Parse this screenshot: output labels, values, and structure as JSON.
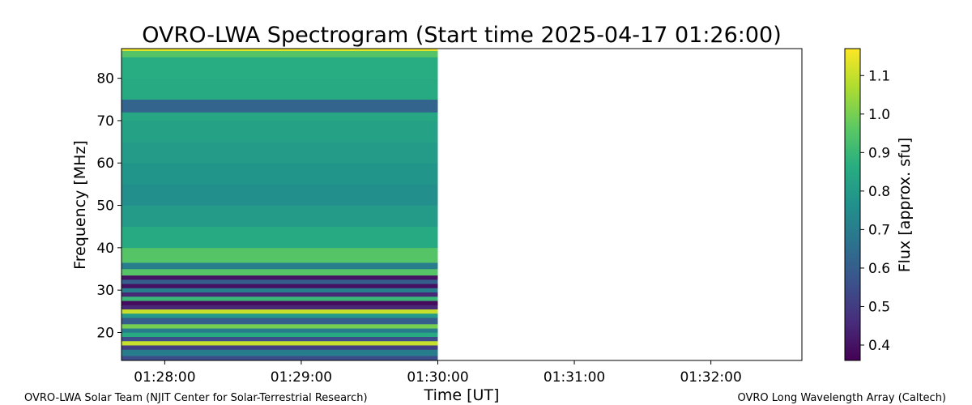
{
  "chart_data": {
    "type": "heatmap",
    "title": "OVRO-LWA Spectrogram (Start time 2025-04-17 01:26:00)",
    "xlabel": "Time [UT]",
    "ylabel": "Frequency [MHz]",
    "xlim": [
      "01:27:41",
      "01:32:40"
    ],
    "ylim": [
      13.4,
      87.0
    ],
    "xticks": [
      {
        "t": "01:28:00",
        "label": "01:28:00"
      },
      {
        "t": "01:29:00",
        "label": "01:29:00"
      },
      {
        "t": "01:30:00",
        "label": "01:30:00"
      },
      {
        "t": "01:31:00",
        "label": "01:31:00"
      },
      {
        "t": "01:32:00",
        "label": "01:32:00"
      }
    ],
    "yticks": [
      20,
      30,
      40,
      50,
      60,
      70,
      80
    ],
    "data_time_range": [
      "01:27:41",
      "01:30:00"
    ],
    "colorbar": {
      "label": "Flux [approx. sfu]",
      "range": [
        0.36,
        1.17
      ],
      "ticks": [
        0.4,
        0.5,
        0.6,
        0.7,
        0.8,
        0.9,
        1.0,
        1.1
      ],
      "colormap": "viridis"
    },
    "band_profile": [
      {
        "f": 13.4,
        "v": 0.55
      },
      {
        "f": 14.5,
        "v": 0.7
      },
      {
        "f": 16,
        "v": 0.5
      },
      {
        "f": 17,
        "v": 1.1
      },
      {
        "f": 18,
        "v": 0.55
      },
      {
        "f": 19,
        "v": 0.85
      },
      {
        "f": 20,
        "v": 0.7
      },
      {
        "f": 21,
        "v": 1.0
      },
      {
        "f": 22,
        "v": 0.6
      },
      {
        "f": 23.5,
        "v": 0.8
      },
      {
        "f": 24.5,
        "v": 1.1
      },
      {
        "f": 25.5,
        "v": 0.45
      },
      {
        "f": 26.5,
        "v": 0.38
      },
      {
        "f": 27.5,
        "v": 0.9
      },
      {
        "f": 28.5,
        "v": 0.45
      },
      {
        "f": 29.5,
        "v": 0.7
      },
      {
        "f": 30.5,
        "v": 0.4
      },
      {
        "f": 31.5,
        "v": 0.6
      },
      {
        "f": 32.5,
        "v": 0.4
      },
      {
        "f": 33.5,
        "v": 0.95
      },
      {
        "f": 35,
        "v": 0.7
      },
      {
        "f": 36.5,
        "v": 0.95
      },
      {
        "f": 40,
        "v": 0.85
      },
      {
        "f": 45,
        "v": 0.8
      },
      {
        "f": 50,
        "v": 0.76
      },
      {
        "f": 55,
        "v": 0.78
      },
      {
        "f": 60,
        "v": 0.8
      },
      {
        "f": 65,
        "v": 0.82
      },
      {
        "f": 70,
        "v": 0.84
      },
      {
        "f": 72,
        "v": 0.62
      },
      {
        "f": 75,
        "v": 0.85
      },
      {
        "f": 80,
        "v": 0.86
      },
      {
        "f": 85,
        "v": 0.95
      },
      {
        "f": 86.5,
        "v": 1.15
      },
      {
        "f": 87,
        "v": 1.15
      }
    ]
  },
  "footer": {
    "left": "OVRO-LWA Solar Team (NJIT Center for Solar-Terrestrial Research)",
    "right": "OVRO Long Wavelength Array (Caltech)"
  }
}
